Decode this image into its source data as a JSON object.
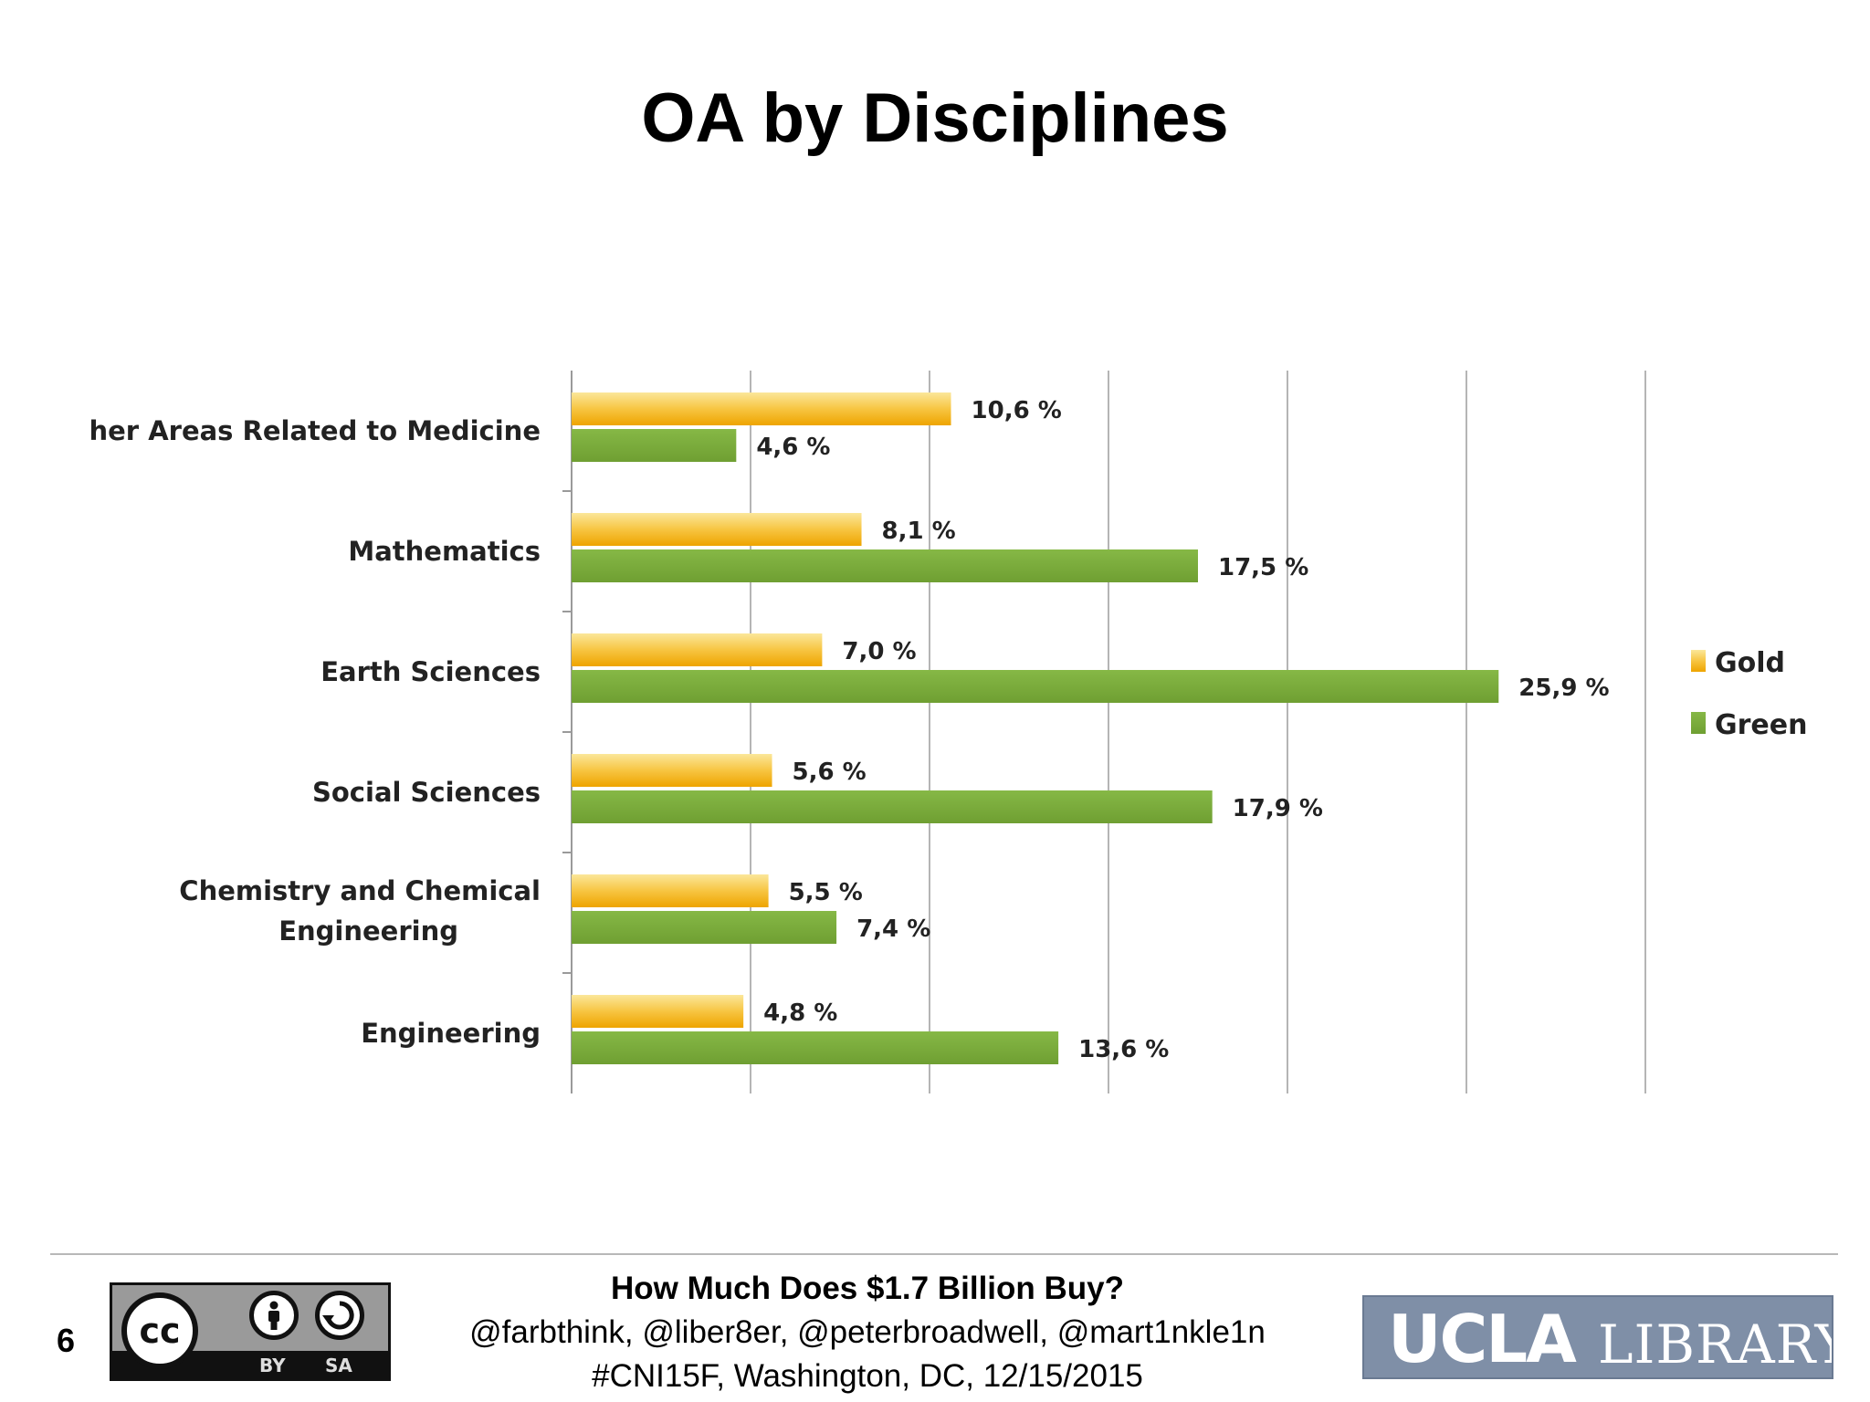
{
  "slide": {
    "title": "OA by Disciplines",
    "number": "6"
  },
  "chart_data": {
    "type": "bar",
    "orientation": "horizontal",
    "categories": [
      "Other Areas Related to Medicine",
      "Mathematics",
      "Earth Sciences",
      "Social Sciences",
      "Chemistry and Chemical Engineering",
      "Engineering"
    ],
    "series": [
      {
        "name": "Gold",
        "color": "#f4b400",
        "values": [
          10.6,
          8.1,
          7.0,
          5.6,
          5.5,
          4.8
        ],
        "labels": [
          "10,6 %",
          "8,1 %",
          "7,0 %",
          "5,6 %",
          "5,5 %",
          "4,8 %"
        ]
      },
      {
        "name": "Green",
        "color": "#7cad3c",
        "values": [
          4.6,
          17.5,
          25.9,
          17.9,
          7.4,
          13.6
        ],
        "labels": [
          "4,6 %",
          "17,5 %",
          "25,9 %",
          "17,9 %",
          "7,4 %",
          "13,6 %"
        ]
      }
    ],
    "xlim": [
      0,
      30
    ],
    "grid": true,
    "legend": "right",
    "title": "",
    "xlabel": "",
    "ylabel": ""
  },
  "footer": {
    "title": "How Much Does $1.7 Billion Buy?",
    "authors": "@farbthink, @liber8er, @peterbroadwell, @mart1nkle1n",
    "event": "#CNI15F, Washington, DC, 12/15/2015",
    "license": {
      "cc": "cc",
      "by": "BY",
      "sa": "SA"
    },
    "logo": {
      "primary": "UCLA",
      "secondary": "LIBRARY"
    }
  }
}
